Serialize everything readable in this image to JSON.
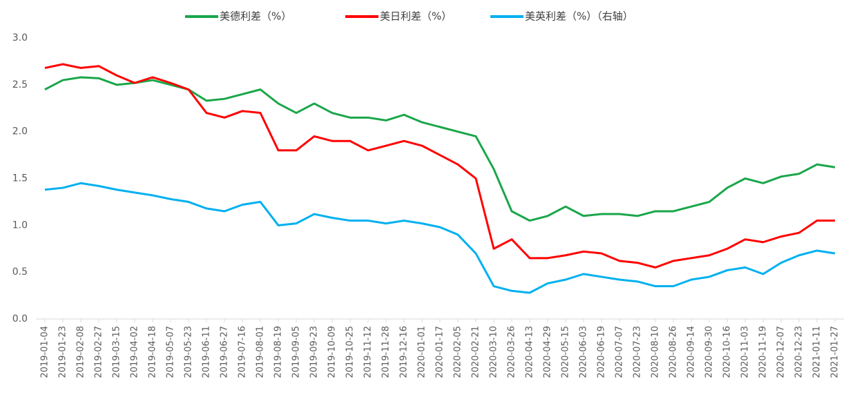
{
  "chart_data": {
    "type": "line",
    "categories": [
      "2019-01-04",
      "2019-01-23",
      "2019-02-08",
      "2019-02-27",
      "2019-03-15",
      "2019-04-02",
      "2019-04-18",
      "2019-05-07",
      "2019-05-23",
      "2019-06-11",
      "2019-06-27",
      "2019-07-16",
      "2019-08-01",
      "2019-08-19",
      "2019-09-05",
      "2019-09-23",
      "2019-10-09",
      "2019-10-25",
      "2019-11-12",
      "2019-11-28",
      "2019-12-16",
      "2020-01-01",
      "2020-01-17",
      "2020-02-05",
      "2020-02-21",
      "2020-03-10",
      "2020-03-26",
      "2020-04-13",
      "2020-04-29",
      "2020-05-15",
      "2020-06-03",
      "2020-06-19",
      "2020-07-07",
      "2020-07-23",
      "2020-08-10",
      "2020-08-26",
      "2020-09-14",
      "2020-09-30",
      "2020-10-16",
      "2020-11-03",
      "2020-11-19",
      "2020-12-07",
      "2020-12-23",
      "2021-01-11",
      "2021-01-27"
    ],
    "series": [
      {
        "name": "美德利差（%）",
        "color": "#1aa64a",
        "values": [
          2.45,
          2.55,
          2.58,
          2.57,
          2.5,
          2.52,
          2.55,
          2.5,
          2.45,
          2.33,
          2.35,
          2.4,
          2.45,
          2.3,
          2.2,
          2.3,
          2.2,
          2.15,
          2.15,
          2.12,
          2.18,
          2.1,
          2.05,
          2.0,
          1.95,
          1.6,
          1.15,
          1.05,
          1.1,
          1.2,
          1.1,
          1.12,
          1.12,
          1.1,
          1.15,
          1.15,
          1.2,
          1.25,
          1.4,
          1.5,
          1.45,
          1.52,
          1.55,
          1.65,
          1.62
        ]
      },
      {
        "name": "美日利差（%）",
        "color": "#ff0000",
        "values": [
          2.68,
          2.72,
          2.68,
          2.7,
          2.6,
          2.52,
          2.58,
          2.52,
          2.45,
          2.2,
          2.15,
          2.22,
          2.2,
          1.8,
          1.8,
          1.95,
          1.9,
          1.9,
          1.8,
          1.85,
          1.9,
          1.85,
          1.75,
          1.65,
          1.5,
          0.75,
          0.85,
          0.65,
          0.65,
          0.68,
          0.72,
          0.7,
          0.62,
          0.6,
          0.55,
          0.62,
          0.65,
          0.68,
          0.75,
          0.85,
          0.82,
          0.88,
          0.92,
          1.05,
          1.05
        ]
      },
      {
        "name": "美英利差（%）（右轴）",
        "color": "#00b0f0",
        "values": [
          1.38,
          1.4,
          1.45,
          1.42,
          1.38,
          1.35,
          1.32,
          1.28,
          1.25,
          1.18,
          1.15,
          1.22,
          1.25,
          1.0,
          1.02,
          1.12,
          1.08,
          1.05,
          1.05,
          1.02,
          1.05,
          1.02,
          0.98,
          0.9,
          0.7,
          0.35,
          0.3,
          0.28,
          0.38,
          0.42,
          0.48,
          0.45,
          0.42,
          0.4,
          0.35,
          0.35,
          0.42,
          0.45,
          0.52,
          0.55,
          0.48,
          0.6,
          0.68,
          0.73,
          0.7
        ]
      }
    ],
    "ylim": [
      0,
      3
    ],
    "yticks": [
      {
        "value": 0,
        "label": "0.0"
      },
      0.5,
      {
        "value": 1,
        "label": "1.0"
      },
      1.5,
      {
        "value": 2,
        "label": "2.0"
      },
      2.5,
      {
        "value": 3,
        "label": "3.0"
      }
    ],
    "grid": false
  }
}
